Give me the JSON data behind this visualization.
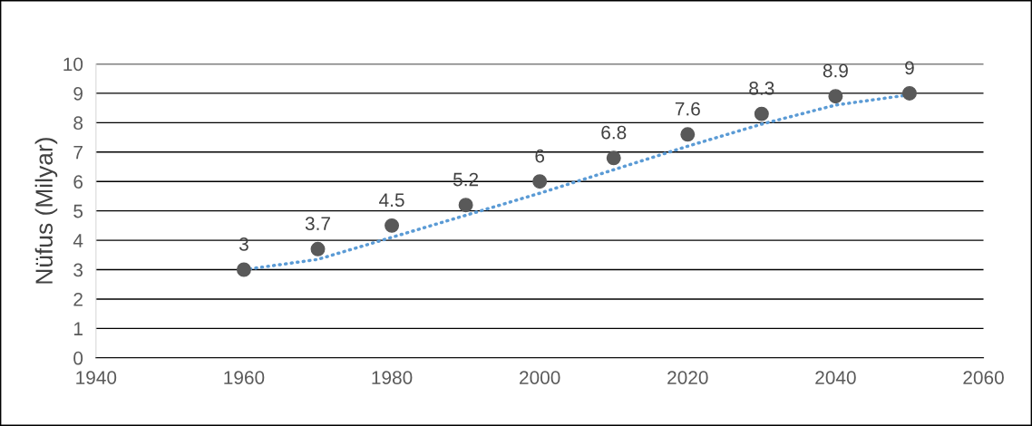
{
  "chart_data": {
    "type": "scatter",
    "ylabel": "Nüfus (Milyar)",
    "x": [
      1960,
      1970,
      1980,
      1990,
      2000,
      2010,
      2020,
      2030,
      2040,
      2050
    ],
    "series": [
      {
        "color": "#595959",
        "values": [
          3,
          3.7,
          4.5,
          5.2,
          6,
          6.8,
          7.6,
          8.3,
          8.9,
          9
        ],
        "data_labels": true,
        "marker": "circle"
      },
      {
        "type": "line",
        "color": "#5b9bd5",
        "line_style": "dotted",
        "marker": "none",
        "x": [
          1960,
          1970,
          1980,
          1990,
          2000,
          2010,
          2020,
          2030,
          2040,
          2050
        ],
        "values": [
          3,
          3.35,
          4.1,
          4.85,
          5.6,
          6.4,
          7.2,
          7.95,
          8.6,
          8.95
        ]
      }
    ],
    "xlim": [
      1940,
      2060
    ],
    "xticks": [
      1940,
      1960,
      1980,
      2000,
      2020,
      2040,
      2060
    ],
    "ylim": [
      0,
      10
    ],
    "yticks": [
      0,
      1,
      2,
      3,
      4,
      5,
      6,
      7,
      8,
      9,
      10
    ],
    "grid": "y",
    "legend": false
  }
}
